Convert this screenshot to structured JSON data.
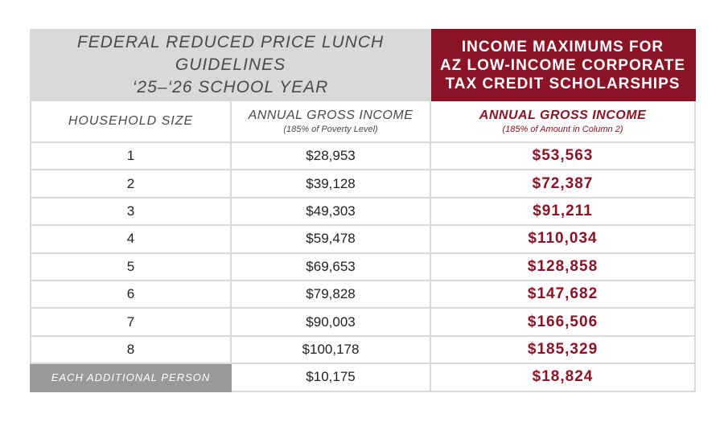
{
  "header": {
    "left_line1": "FEDERAL REDUCED PRICE LUNCH GUIDELINES",
    "left_line2": "‘25–‘26 SCHOOL YEAR",
    "right_line1": "INCOME MAXIMUMS FOR",
    "right_line2": "AZ LOW-INCOME CORPORATE",
    "right_line3": "TAX CREDIT SCHOLARSHIPS"
  },
  "columns": {
    "household_label": "HOUSEHOLD SIZE",
    "income_title": "ANNUAL GROSS INCOME",
    "income_note": "(185% of Poverty Level)",
    "max_title": "ANNUAL GROSS INCOME",
    "max_note": "(185% of Amount in Column 2)"
  },
  "rows": [
    {
      "size": "1",
      "income": "$28,953",
      "max": "$53,563"
    },
    {
      "size": "2",
      "income": "$39,128",
      "max": "$72,387"
    },
    {
      "size": "3",
      "income": "$49,303",
      "max": "$91,211"
    },
    {
      "size": "4",
      "income": "$59,478",
      "max": "$110,034"
    },
    {
      "size": "5",
      "income": "$69,653",
      "max": "$128,858"
    },
    {
      "size": "6",
      "income": "$79,828",
      "max": "$147,682"
    },
    {
      "size": "7",
      "income": "$90,003",
      "max": "$166,506"
    },
    {
      "size": "8",
      "income": "$100,178",
      "max": "$185,329"
    },
    {
      "size": "EACH ADDITIONAL PERSON",
      "income": "$10,175",
      "max": "$18,824"
    }
  ],
  "colors": {
    "accent_red": "#8c1325",
    "header_gray": "#d9d9d9",
    "label_gray": "#999999"
  }
}
